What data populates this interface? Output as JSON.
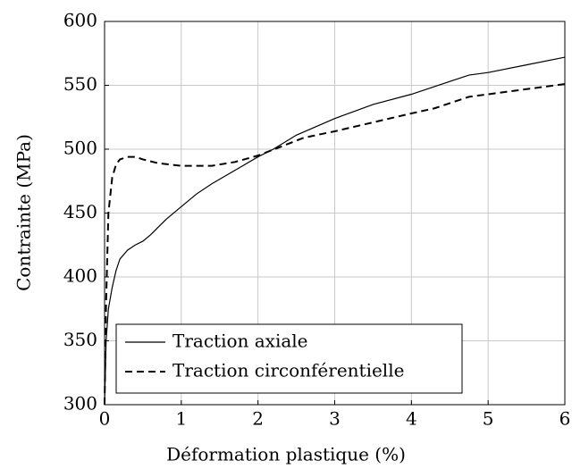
{
  "chart_data": {
    "type": "line",
    "xlabel": "Déformation plastique (%)",
    "ylabel": "Contrainte (MPa)",
    "xlim": [
      0,
      6
    ],
    "xticks": [
      0,
      1,
      2,
      3,
      4,
      5,
      6
    ],
    "ylim": [
      300,
      600
    ],
    "yticks": [
      300,
      350,
      400,
      450,
      500,
      550,
      600
    ],
    "grid": true,
    "legend": "lower left",
    "series": [
      {
        "name": "Traction axiale",
        "color": "#000000",
        "style": "solid",
        "x": [
          0,
          0.02,
          0.05,
          0.1,
          0.15,
          0.2,
          0.3,
          0.4,
          0.5,
          0.6,
          0.8,
          1.0,
          1.2,
          1.4,
          1.6,
          1.8,
          2.0,
          2.2,
          2.5,
          3.0,
          3.5,
          4.0,
          4.5,
          4.75,
          5.0,
          5.5,
          6.0
        ],
        "values": [
          300,
          350,
          375,
          392,
          405,
          414,
          421,
          425,
          428,
          433,
          445,
          455,
          465,
          473,
          480,
          487,
          494,
          500,
          511,
          524,
          535,
          543,
          553,
          558,
          560,
          566,
          572
        ]
      },
      {
        "name": "Traction circonférentielle",
        "color": "#000000",
        "style": "dashed",
        "x": [
          0,
          0.02,
          0.05,
          0.1,
          0.15,
          0.2,
          0.3,
          0.4,
          0.5,
          0.7,
          1.0,
          1.4,
          1.7,
          2.0,
          2.3,
          2.6,
          3.0,
          3.5,
          4.0,
          4.3,
          4.75,
          5.0,
          5.5,
          6.0
        ],
        "values": [
          300,
          380,
          450,
          478,
          488,
          492,
          494,
          494,
          492,
          489,
          487,
          487,
          490,
          495,
          502,
          509,
          514,
          521,
          528,
          532,
          541,
          543,
          547,
          551
        ]
      }
    ]
  }
}
